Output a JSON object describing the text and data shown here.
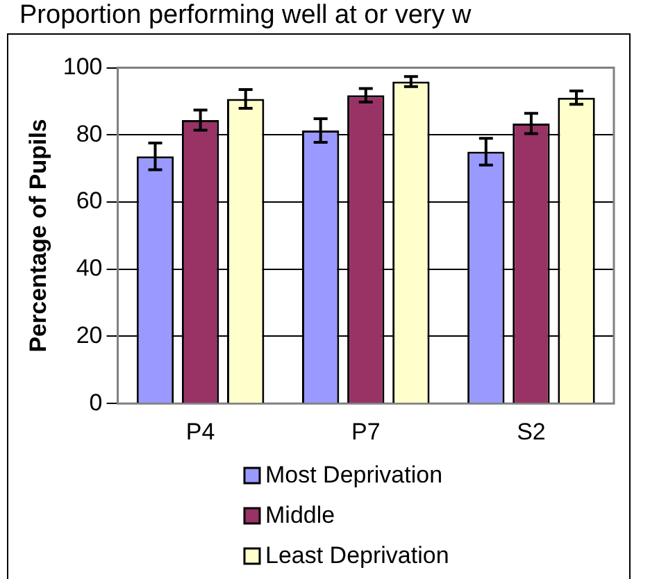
{
  "chart_data": {
    "type": "bar",
    "title": "Proportion performing well at or very w",
    "ylabel": "Percentage of Pupils",
    "categories": [
      "P4",
      "P7",
      "S2"
    ],
    "series": [
      {
        "name": "Most Deprivation",
        "color": "#9999ff",
        "values": [
          73.6,
          81.3,
          75.0
        ],
        "errors": [
          4,
          3.5,
          4
        ]
      },
      {
        "name": "Middle",
        "color": "#993366",
        "values": [
          84.4,
          91.8,
          83.4
        ],
        "errors": [
          3,
          2,
          3
        ]
      },
      {
        "name": "Least Deprivation",
        "color": "#ffffcc",
        "values": [
          90.7,
          95.9,
          91.1
        ],
        "errors": [
          2.8,
          1.5,
          2
        ]
      }
    ],
    "ylim": [
      0,
      100
    ],
    "yticks": [
      0,
      20,
      40,
      60,
      80,
      100
    ],
    "grid": "y",
    "legend": "bottom"
  }
}
